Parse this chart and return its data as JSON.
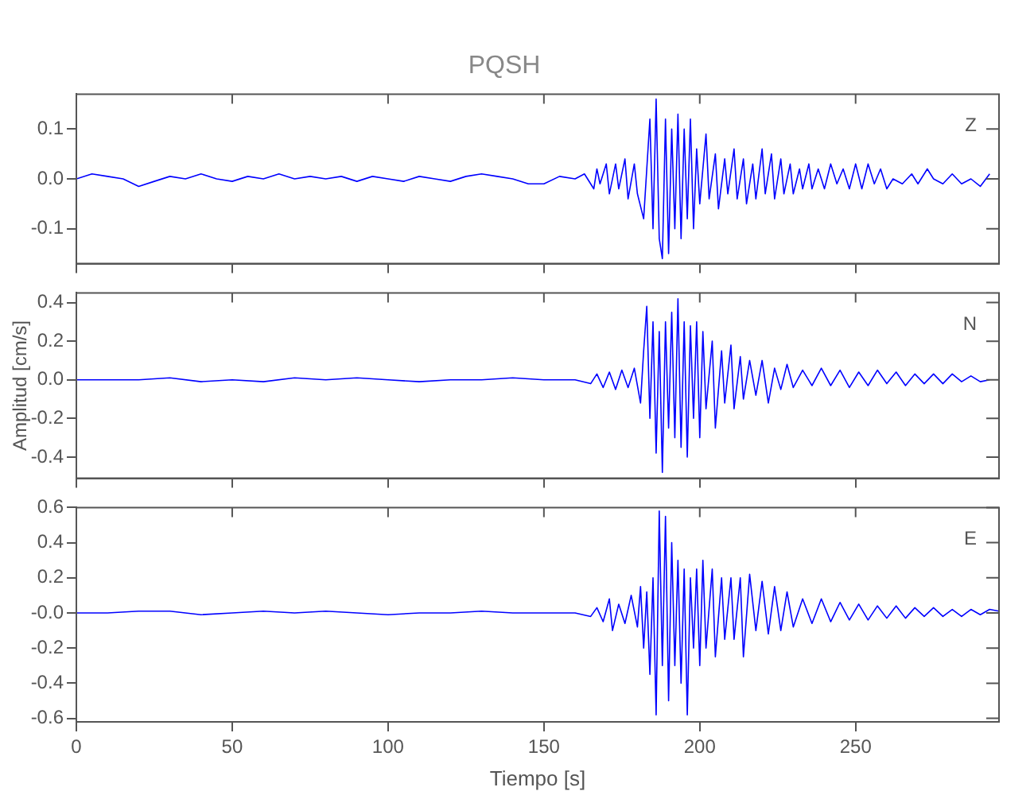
{
  "chart_data": [
    {
      "type": "line",
      "title": "PQSH",
      "annotations": [
        "Z"
      ],
      "grid": false,
      "marker": "none",
      "line_style": "solid",
      "legend": false,
      "tick_labels": "y",
      "xlim": [
        0,
        296
      ],
      "xticks": [
        0,
        50,
        100,
        150,
        200,
        250
      ],
      "ylim": [
        -0.17,
        0.17
      ],
      "yticks": [
        {
          "value": -0.1,
          "label": "-0.1"
        },
        {
          "value": 0,
          "label": "0.0"
        },
        {
          "value": 0.1,
          "label": "0.1"
        }
      ],
      "series": [
        {
          "color": "#0000ff",
          "x": [
            0,
            5,
            10,
            15,
            20,
            25,
            30,
            35,
            40,
            45,
            50,
            55,
            60,
            65,
            70,
            75,
            80,
            85,
            90,
            95,
            100,
            105,
            110,
            115,
            120,
            125,
            130,
            135,
            140,
            145,
            150,
            155,
            160,
            163,
            166,
            167,
            168,
            170,
            171,
            173,
            174,
            176,
            177,
            179,
            180,
            182,
            183,
            184,
            185,
            186,
            187,
            188,
            189,
            190,
            191,
            192,
            193,
            194,
            195,
            196,
            197,
            198,
            199,
            200,
            202,
            203,
            205,
            206,
            208,
            209,
            211,
            212,
            214,
            215,
            217,
            218,
            220,
            221,
            223,
            224,
            226,
            227,
            229,
            230,
            232,
            233,
            235,
            236,
            238,
            240,
            242,
            244,
            246,
            248,
            250,
            252,
            254,
            256,
            258,
            260,
            262,
            265,
            268,
            270,
            273,
            275,
            278,
            281,
            284,
            287,
            290,
            293
          ],
          "values": [
            0,
            0.01,
            0.005,
            0,
            -0.015,
            -0.005,
            0.005,
            0,
            0.01,
            0,
            -0.005,
            0.005,
            0,
            0.01,
            0,
            0.005,
            0,
            0.005,
            -0.005,
            0.005,
            0,
            -0.005,
            0.005,
            0,
            -0.005,
            0.005,
            0.01,
            0.005,
            0,
            -0.01,
            -0.01,
            0.005,
            0,
            0.01,
            -0.02,
            0.02,
            -0.01,
            0.03,
            -0.03,
            0.03,
            -0.02,
            0.04,
            -0.04,
            0.03,
            -0.03,
            -0.08,
            0.02,
            0.12,
            -0.1,
            0.16,
            -0.12,
            -0.16,
            0.12,
            -0.15,
            0.1,
            -0.1,
            0.13,
            -0.12,
            0.1,
            -0.08,
            0.12,
            -0.1,
            0.06,
            -0.05,
            0.09,
            -0.04,
            0.05,
            -0.06,
            0.04,
            -0.03,
            0.06,
            -0.04,
            0.04,
            -0.05,
            0.03,
            -0.04,
            0.06,
            -0.03,
            0.05,
            -0.04,
            0.04,
            -0.03,
            0.03,
            -0.03,
            0.02,
            -0.02,
            0.03,
            -0.02,
            0.02,
            -0.02,
            0.03,
            -0.01,
            0.02,
            -0.02,
            0.03,
            -0.02,
            0.03,
            -0.01,
            0.02,
            -0.02,
            0,
            -0.01,
            0.01,
            -0.01,
            0.02,
            0,
            -0.01,
            0.01,
            -0.01,
            0,
            -0.015,
            0.01
          ]
        }
      ]
    },
    {
      "type": "line",
      "ylabel": "Amplitud [cm/s]",
      "annotations": [
        "N"
      ],
      "grid": false,
      "marker": "none",
      "line_style": "solid",
      "legend": false,
      "tick_labels": "y",
      "xlim": [
        0,
        296
      ],
      "xticks": [
        0,
        50,
        100,
        150,
        200,
        250
      ],
      "ylim": [
        -0.51,
        0.45
      ],
      "yticks": [
        {
          "value": -0.4,
          "label": "-0.4"
        },
        {
          "value": -0.2,
          "label": "-0.2"
        },
        {
          "value": 0,
          "label": "0.0"
        },
        0.2,
        0.4
      ],
      "series": [
        {
          "color": "#0000ff",
          "x": [
            0,
            10,
            20,
            30,
            40,
            50,
            60,
            70,
            80,
            90,
            100,
            110,
            120,
            130,
            140,
            150,
            160,
            165,
            167,
            169,
            171,
            173,
            175,
            177,
            179,
            181,
            182,
            183,
            184,
            185,
            186,
            187,
            188,
            189,
            190,
            191,
            192,
            193,
            194,
            195,
            196,
            197,
            198,
            199,
            200,
            201,
            202,
            204,
            205,
            207,
            208,
            210,
            211,
            213,
            214,
            216,
            218,
            220,
            222,
            224,
            226,
            228,
            230,
            233,
            236,
            239,
            242,
            245,
            248,
            251,
            254,
            257,
            260,
            263,
            266,
            269,
            272,
            275,
            278,
            281,
            284,
            287,
            290,
            293
          ],
          "values": [
            0,
            0,
            0,
            0.01,
            -0.01,
            0,
            -0.01,
            0.01,
            0,
            0.01,
            0,
            -0.01,
            0,
            0,
            0.01,
            0,
            0,
            -0.02,
            0.03,
            -0.04,
            0.04,
            -0.05,
            0.05,
            -0.04,
            0.06,
            -0.12,
            0.15,
            0.38,
            -0.2,
            0.3,
            -0.38,
            0.25,
            -0.48,
            0.3,
            -0.25,
            0.35,
            -0.3,
            0.42,
            -0.35,
            0.3,
            -0.4,
            0.28,
            -0.2,
            0.3,
            -0.3,
            0.25,
            -0.15,
            0.2,
            -0.25,
            0.15,
            -0.12,
            0.18,
            -0.15,
            0.12,
            -0.1,
            0.1,
            -0.08,
            0.1,
            -0.12,
            0.06,
            -0.05,
            0.08,
            -0.04,
            0.05,
            -0.03,
            0.06,
            -0.03,
            0.05,
            -0.04,
            0.04,
            -0.03,
            0.05,
            -0.02,
            0.04,
            -0.03,
            0.03,
            -0.02,
            0.03,
            -0.02,
            0.03,
            -0.01,
            0.02,
            -0.01,
            0
          ]
        }
      ]
    },
    {
      "type": "line",
      "xlabel": "Tiempo [s]",
      "annotations": [
        "E"
      ],
      "grid": false,
      "marker": "none",
      "line_style": "solid",
      "legend": false,
      "xlim": [
        0,
        296
      ],
      "xticks": [
        0,
        50,
        100,
        150,
        200,
        250
      ],
      "ylim": [
        -0.62,
        0.6
      ],
      "yticks": [
        {
          "value": -0.6,
          "label": "-0.6"
        },
        {
          "value": -0.4,
          "label": "-0.4"
        },
        {
          "value": -0.2,
          "label": "-0.2"
        },
        {
          "value": 0,
          "label": "-0.0"
        },
        0.2,
        0.4,
        0.6
      ],
      "series": [
        {
          "color": "#0000ff",
          "x": [
            0,
            10,
            20,
            30,
            40,
            50,
            60,
            70,
            80,
            90,
            100,
            110,
            120,
            130,
            140,
            150,
            160,
            165,
            167,
            169,
            171,
            172,
            174,
            176,
            178,
            180,
            181,
            182,
            183,
            184,
            185,
            186,
            187,
            188,
            189,
            190,
            191,
            192,
            193,
            194,
            195,
            196,
            197,
            198,
            199,
            200,
            201,
            202,
            204,
            205,
            207,
            208,
            210,
            211,
            213,
            214,
            216,
            218,
            220,
            222,
            224,
            226,
            228,
            230,
            233,
            236,
            239,
            242,
            245,
            248,
            251,
            254,
            257,
            260,
            263,
            266,
            269,
            272,
            275,
            278,
            281,
            284,
            287,
            290,
            293,
            296
          ],
          "values": [
            0,
            0,
            0.01,
            0.01,
            -0.01,
            0,
            0.01,
            0,
            0.01,
            0,
            -0.01,
            0,
            0,
            0.01,
            0,
            0,
            0,
            -0.02,
            0.03,
            -0.05,
            0.08,
            -0.1,
            0.05,
            -0.06,
            0.1,
            -0.08,
            0.15,
            -0.2,
            0.12,
            -0.35,
            0.2,
            -0.58,
            0.58,
            -0.3,
            0.55,
            -0.5,
            0.4,
            -0.3,
            0.3,
            -0.4,
            0.25,
            -0.58,
            0.2,
            -0.2,
            0.25,
            -0.3,
            0.3,
            -0.2,
            0.25,
            -0.25,
            0.2,
            -0.15,
            0.2,
            -0.15,
            0.2,
            -0.25,
            0.22,
            -0.1,
            0.18,
            -0.12,
            0.15,
            -0.1,
            0.12,
            -0.08,
            0.08,
            -0.06,
            0.08,
            -0.05,
            0.06,
            -0.04,
            0.05,
            -0.04,
            0.04,
            -0.03,
            0.04,
            -0.03,
            0.03,
            -0.02,
            0.03,
            -0.02,
            0.02,
            -0.02,
            0.02,
            -0.01,
            0.02,
            0.01
          ]
        }
      ]
    }
  ]
}
